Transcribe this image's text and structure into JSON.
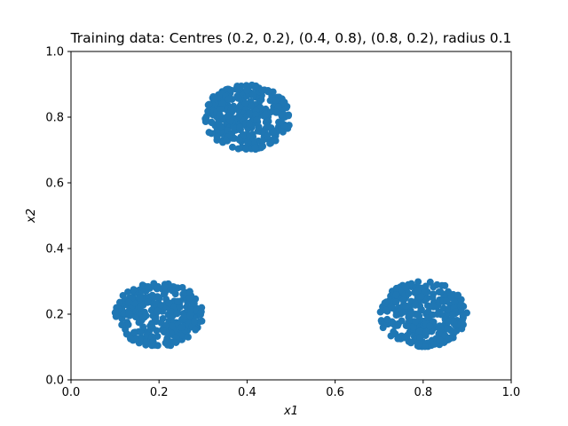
{
  "chart_data": {
    "type": "scatter",
    "title": "Training data: Centres (0.2, 0.2), (0.4, 0.8), (0.8, 0.2), radius 0.1",
    "xlabel": "x1",
    "ylabel": "x2",
    "xlim": [
      0.0,
      1.0
    ],
    "ylim": [
      0.0,
      1.0
    ],
    "xticks": [
      "0.0",
      "0.2",
      "0.4",
      "0.6",
      "0.8",
      "1.0"
    ],
    "yticks": [
      "0.0",
      "0.2",
      "0.4",
      "0.6",
      "0.8",
      "1.0"
    ],
    "grid": false,
    "color": "#1f77b4",
    "clusters": [
      {
        "center": [
          0.2,
          0.2
        ],
        "radius": 0.1
      },
      {
        "center": [
          0.4,
          0.8
        ],
        "radius": 0.1
      },
      {
        "center": [
          0.8,
          0.2
        ],
        "radius": 0.1
      }
    ]
  }
}
